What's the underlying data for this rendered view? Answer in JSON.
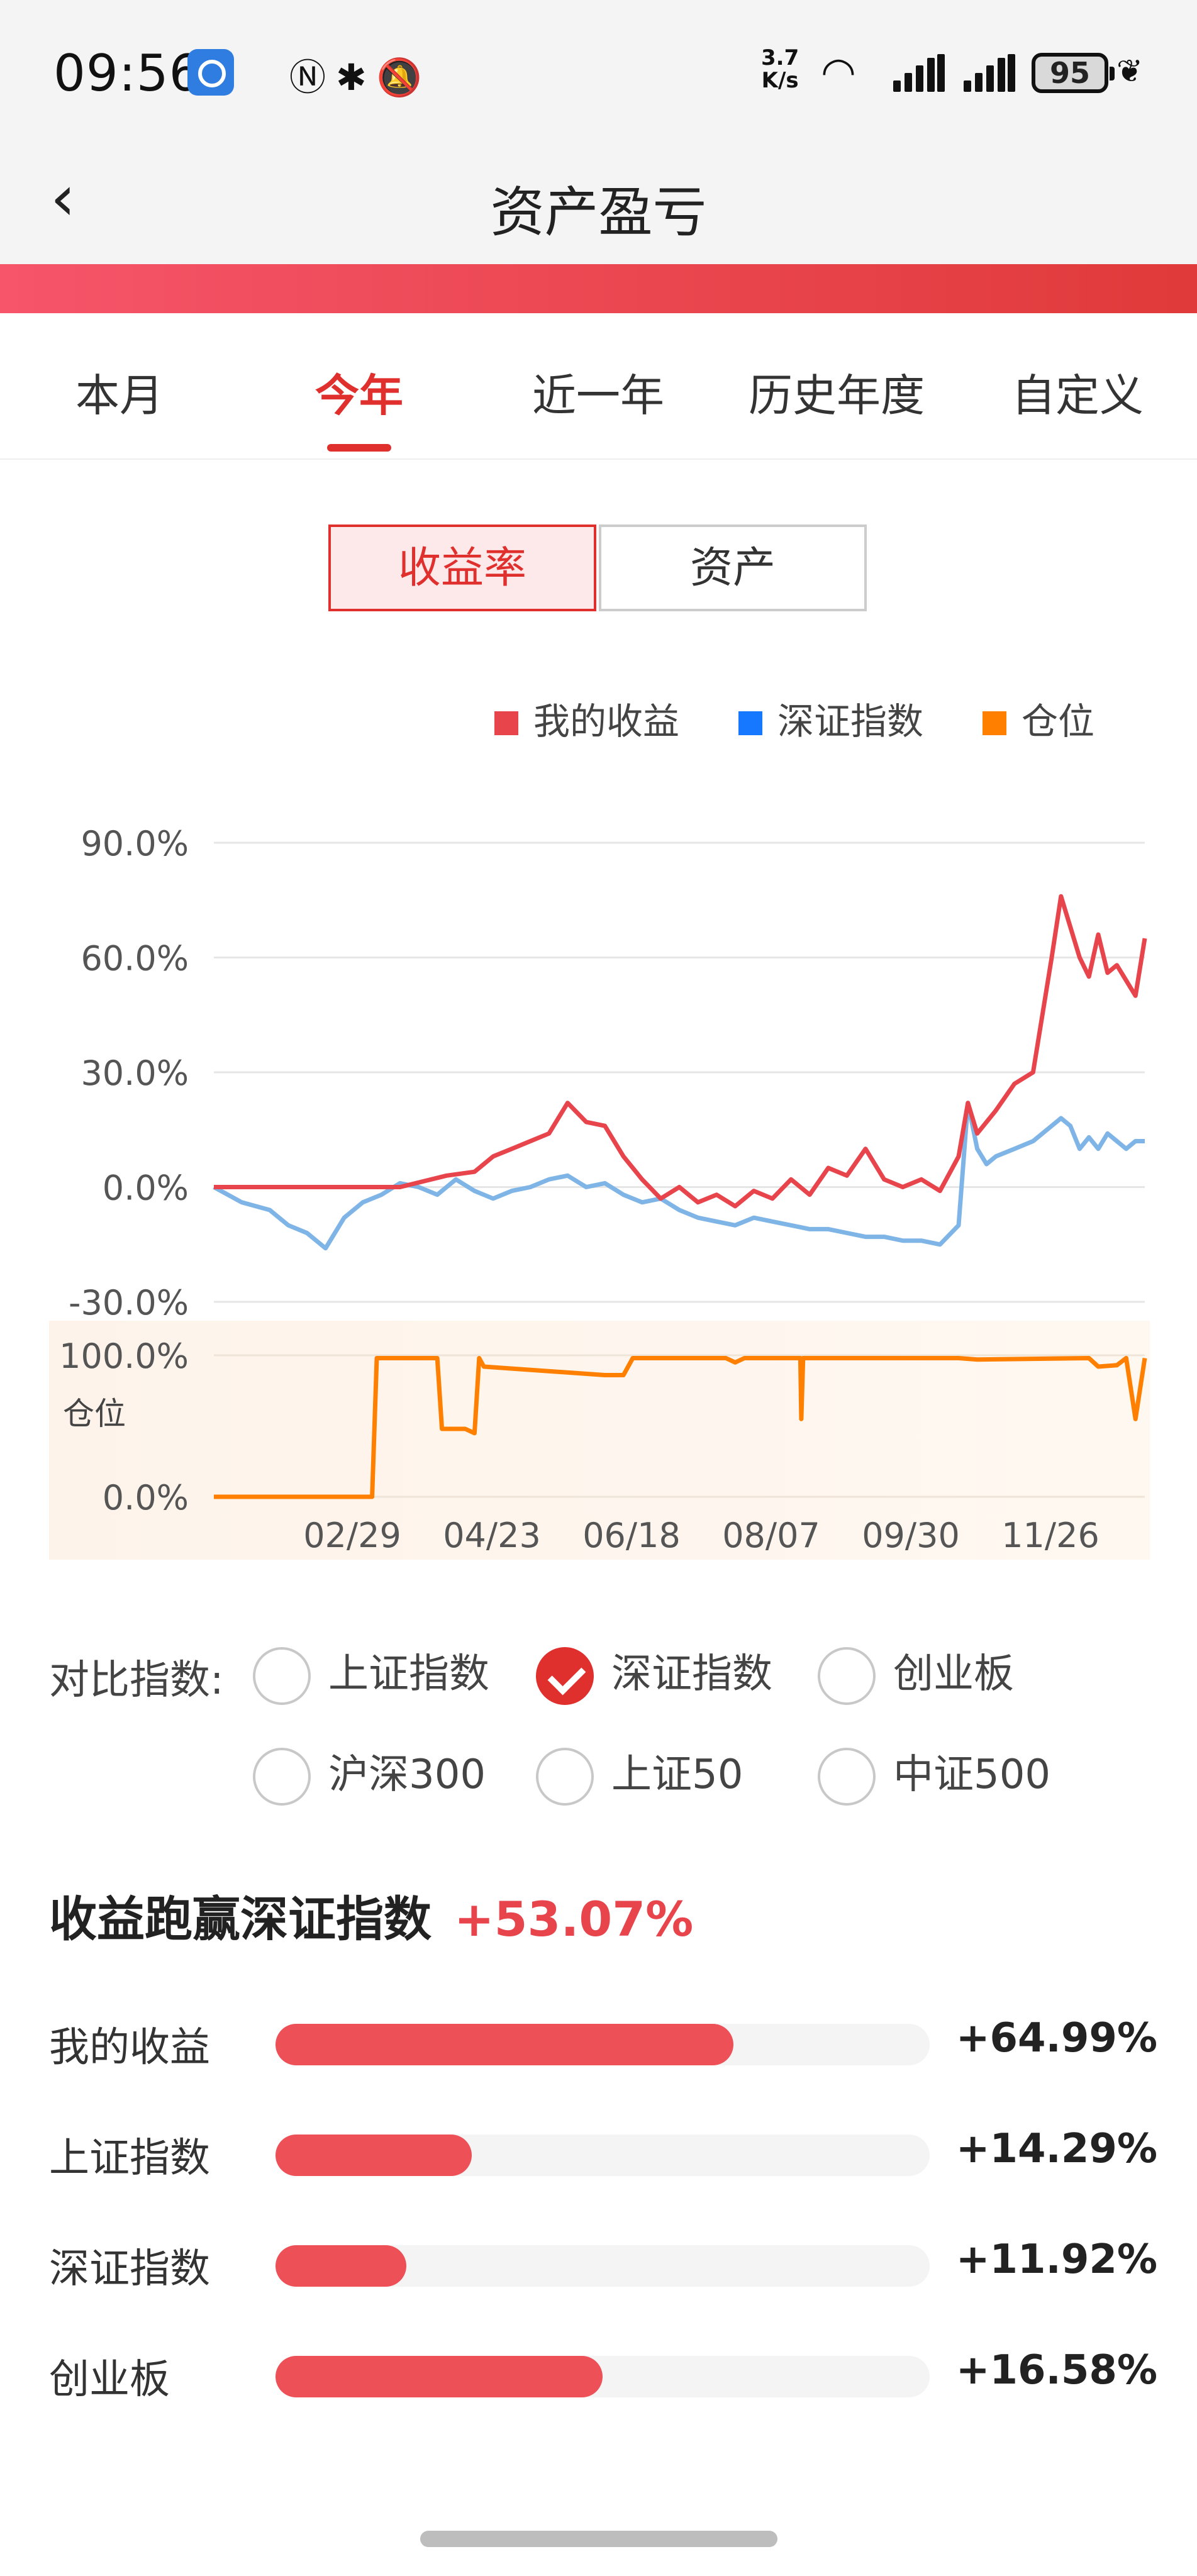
{
  "status_bar": {
    "time": "09:56",
    "net_speed_value": "3.7",
    "net_speed_unit": "K/s",
    "battery": "95",
    "icons": [
      "app-notification-icon",
      "nfc-icon",
      "bluetooth-battery-icon",
      "mute-icon",
      "wifi-icon",
      "signal-icon",
      "signal-icon",
      "battery-icon",
      "leaf-icon"
    ]
  },
  "header": {
    "title": "资产盈亏",
    "back_icon": "chevron-left-icon"
  },
  "tabs": [
    {
      "label": "本月"
    },
    {
      "label": "今年",
      "active": true
    },
    {
      "label": "近一年"
    },
    {
      "label": "历史年度"
    },
    {
      "label": "自定义"
    }
  ],
  "segment": {
    "options": [
      "收益率",
      "资产"
    ],
    "selected": "收益率"
  },
  "legend": [
    {
      "label": "我的收益",
      "color": "#e8444c"
    },
    {
      "label": "深证指数",
      "color": "#1677ff"
    },
    {
      "label": "仓位",
      "color": "#ff8000"
    }
  ],
  "chart_data": [
    {
      "type": "line",
      "yticks": [
        "90.0%",
        "60.0%",
        "30.0%",
        "0.0%",
        "-30.0%"
      ],
      "ylim": [
        -30,
        90
      ],
      "grid": true,
      "legend_position": "top-right",
      "series": [
        {
          "name": "我的收益",
          "color": "#e8444c",
          "points": [
            [
              0,
              0
            ],
            [
              0.05,
              0
            ],
            [
              0.1,
              0
            ],
            [
              0.15,
              0
            ],
            [
              0.2,
              0
            ],
            [
              0.25,
              3
            ],
            [
              0.28,
              4
            ],
            [
              0.3,
              8
            ],
            [
              0.32,
              10
            ],
            [
              0.34,
              12
            ],
            [
              0.36,
              14
            ],
            [
              0.38,
              22
            ],
            [
              0.4,
              17
            ],
            [
              0.42,
              16
            ],
            [
              0.44,
              8
            ],
            [
              0.46,
              2
            ],
            [
              0.48,
              -3
            ],
            [
              0.5,
              0
            ],
            [
              0.52,
              -4
            ],
            [
              0.54,
              -2
            ],
            [
              0.56,
              -5
            ],
            [
              0.58,
              -1
            ],
            [
              0.6,
              -3
            ],
            [
              0.62,
              2
            ],
            [
              0.64,
              -2
            ],
            [
              0.66,
              5
            ],
            [
              0.68,
              3
            ],
            [
              0.7,
              10
            ],
            [
              0.72,
              2
            ],
            [
              0.74,
              0
            ],
            [
              0.76,
              2
            ],
            [
              0.78,
              -1
            ],
            [
              0.8,
              8
            ],
            [
              0.81,
              22
            ],
            [
              0.82,
              14
            ],
            [
              0.84,
              20
            ],
            [
              0.86,
              27
            ],
            [
              0.88,
              30
            ],
            [
              0.9,
              60
            ],
            [
              0.91,
              76
            ],
            [
              0.92,
              68
            ],
            [
              0.93,
              60
            ],
            [
              0.94,
              55
            ],
            [
              0.95,
              66
            ],
            [
              0.96,
              56
            ],
            [
              0.97,
              58
            ],
            [
              0.98,
              54
            ],
            [
              0.99,
              50
            ],
            [
              1.0,
              65
            ]
          ]
        },
        {
          "name": "深证指数",
          "color": "#7fb4e6",
          "points": [
            [
              0,
              0
            ],
            [
              0.03,
              -4
            ],
            [
              0.06,
              -6
            ],
            [
              0.08,
              -10
            ],
            [
              0.1,
              -12
            ],
            [
              0.12,
              -16
            ],
            [
              0.14,
              -8
            ],
            [
              0.16,
              -4
            ],
            [
              0.18,
              -2
            ],
            [
              0.2,
              1
            ],
            [
              0.22,
              0
            ],
            [
              0.24,
              -2
            ],
            [
              0.26,
              2
            ],
            [
              0.28,
              -1
            ],
            [
              0.3,
              -3
            ],
            [
              0.32,
              -1
            ],
            [
              0.34,
              0
            ],
            [
              0.36,
              2
            ],
            [
              0.38,
              3
            ],
            [
              0.4,
              0
            ],
            [
              0.42,
              1
            ],
            [
              0.44,
              -2
            ],
            [
              0.46,
              -4
            ],
            [
              0.48,
              -3
            ],
            [
              0.5,
              -6
            ],
            [
              0.52,
              -8
            ],
            [
              0.54,
              -9
            ],
            [
              0.56,
              -10
            ],
            [
              0.58,
              -8
            ],
            [
              0.6,
              -9
            ],
            [
              0.62,
              -10
            ],
            [
              0.64,
              -11
            ],
            [
              0.66,
              -11
            ],
            [
              0.68,
              -12
            ],
            [
              0.7,
              -13
            ],
            [
              0.72,
              -13
            ],
            [
              0.74,
              -14
            ],
            [
              0.76,
              -14
            ],
            [
              0.78,
              -15
            ],
            [
              0.8,
              -10
            ],
            [
              0.81,
              22
            ],
            [
              0.82,
              10
            ],
            [
              0.83,
              6
            ],
            [
              0.84,
              8
            ],
            [
              0.86,
              10
            ],
            [
              0.88,
              12
            ],
            [
              0.9,
              16
            ],
            [
              0.91,
              18
            ],
            [
              0.92,
              16
            ],
            [
              0.93,
              10
            ],
            [
              0.94,
              13
            ],
            [
              0.95,
              10
            ],
            [
              0.96,
              14
            ],
            [
              0.97,
              12
            ],
            [
              0.98,
              10
            ],
            [
              0.99,
              12
            ],
            [
              1.0,
              12
            ]
          ]
        }
      ]
    },
    {
      "type": "area",
      "ylabel": "仓位",
      "yticks": [
        "100.0%",
        "0.0%"
      ],
      "ylim": [
        0,
        100
      ],
      "categories": [
        "02/29",
        "04/23",
        "06/18",
        "08/07",
        "09/30",
        "11/26"
      ],
      "series": [
        {
          "name": "仓位",
          "color": "#ff8000",
          "points": [
            [
              0,
              0
            ],
            [
              0.17,
              0
            ],
            [
              0.175,
              98
            ],
            [
              0.24,
              98
            ],
            [
              0.245,
              48
            ],
            [
              0.27,
              48
            ],
            [
              0.28,
              45
            ],
            [
              0.285,
              98
            ],
            [
              0.29,
              92
            ],
            [
              0.42,
              86
            ],
            [
              0.44,
              86
            ],
            [
              0.45,
              98
            ],
            [
              0.55,
              98
            ],
            [
              0.56,
              95
            ],
            [
              0.57,
              98
            ],
            [
              0.63,
              98
            ],
            [
              0.631,
              55
            ],
            [
              0.633,
              98
            ],
            [
              0.7,
              98
            ],
            [
              0.8,
              98
            ],
            [
              0.82,
              97
            ],
            [
              0.94,
              98
            ],
            [
              0.95,
              92
            ],
            [
              0.97,
              93
            ],
            [
              0.98,
              98
            ],
            [
              0.99,
              55
            ],
            [
              1.0,
              98
            ]
          ]
        }
      ]
    }
  ],
  "compare": {
    "label": "对比指数:",
    "options": [
      {
        "label": "上证指数",
        "checked": false
      },
      {
        "label": "深证指数",
        "checked": true
      },
      {
        "label": "创业板",
        "checked": false
      },
      {
        "label": "沪深300",
        "checked": false
      },
      {
        "label": "上证50",
        "checked": false
      },
      {
        "label": "中证500",
        "checked": false
      }
    ]
  },
  "summary": {
    "label": "收益跑赢深证指数",
    "value": "+53.07%"
  },
  "bars": [
    {
      "label": "我的收益",
      "value": "+64.99%",
      "fraction": 0.7
    },
    {
      "label": "上证指数",
      "value": "+14.29%",
      "fraction": 0.3
    },
    {
      "label": "深证指数",
      "value": "+11.92%",
      "fraction": 0.2
    },
    {
      "label": "创业板",
      "value": "+16.58%",
      "fraction": 0.5
    }
  ]
}
